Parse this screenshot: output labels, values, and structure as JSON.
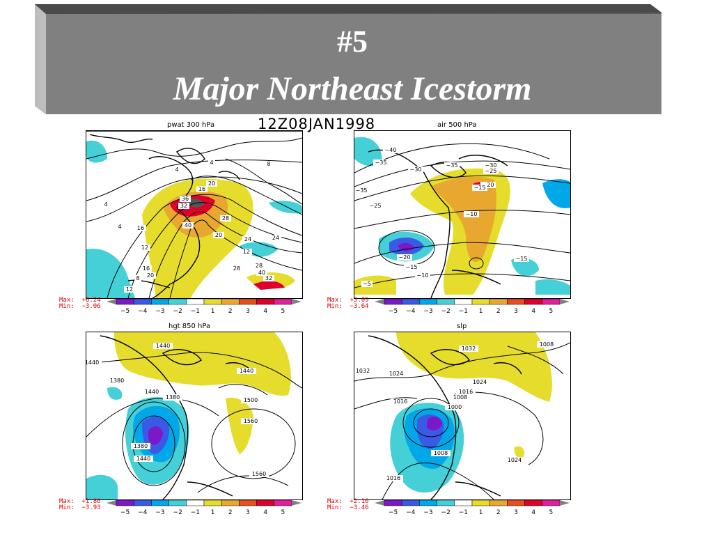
{
  "title": {
    "number": "#5",
    "main": "Major Northeast Icestorm"
  },
  "timestamp": "12Z08JAN1998",
  "colors": {
    "banner": "#808080",
    "scale": [
      "#7b19c8",
      "#3a5ae6",
      "#00a8e8",
      "#45d0d8",
      "#ffffff",
      "#e6dc2c",
      "#e8a830",
      "#e5501e",
      "#e0002c",
      "#e0209c"
    ]
  },
  "scale_labels": [
    "−5",
    "−4",
    "−3",
    "−2",
    "−1",
    "1",
    "2",
    "3",
    "4",
    "5"
  ],
  "panels": [
    {
      "name": "pwat 300 hPa",
      "max": "Max:  +6.24",
      "min": "Min:  −3.06",
      "labels": [
        "4",
        "4",
        "4",
        "4",
        "8",
        "16",
        "12",
        "20",
        "24",
        "24",
        "28",
        "28",
        "32",
        "36",
        "40",
        "16",
        "20",
        "8",
        "12",
        "16",
        "20",
        "12",
        "40",
        "32",
        "28"
      ]
    },
    {
      "name": "air 500 hPa",
      "max": "Max:  +3.09",
      "min": "Min:  −3.64",
      "labels": [
        "−40",
        "−35",
        "−30",
        "−35",
        "−30",
        "−25",
        "−20",
        "−15",
        "−30",
        "−25",
        "−10",
        "−15",
        "−20",
        "−15",
        "−10",
        "−5",
        "−35"
      ]
    },
    {
      "name": "hgt 850 hPa",
      "max": "Max:  +1.86",
      "min": "Min:  −3.93",
      "labels": [
        "1440",
        "1440",
        "1380",
        "1440",
        "1380",
        "1440",
        "1500",
        "1560",
        "1380",
        "1440",
        "1560"
      ]
    },
    {
      "name": "slp",
      "max": "Max:  +2.16",
      "min": "Min:  −3.46",
      "labels": [
        "1008",
        "1032",
        "1032",
        "1024",
        "1024",
        "1016",
        "1016",
        "1008",
        "1000",
        "1008",
        "1024",
        "1016"
      ]
    }
  ]
}
